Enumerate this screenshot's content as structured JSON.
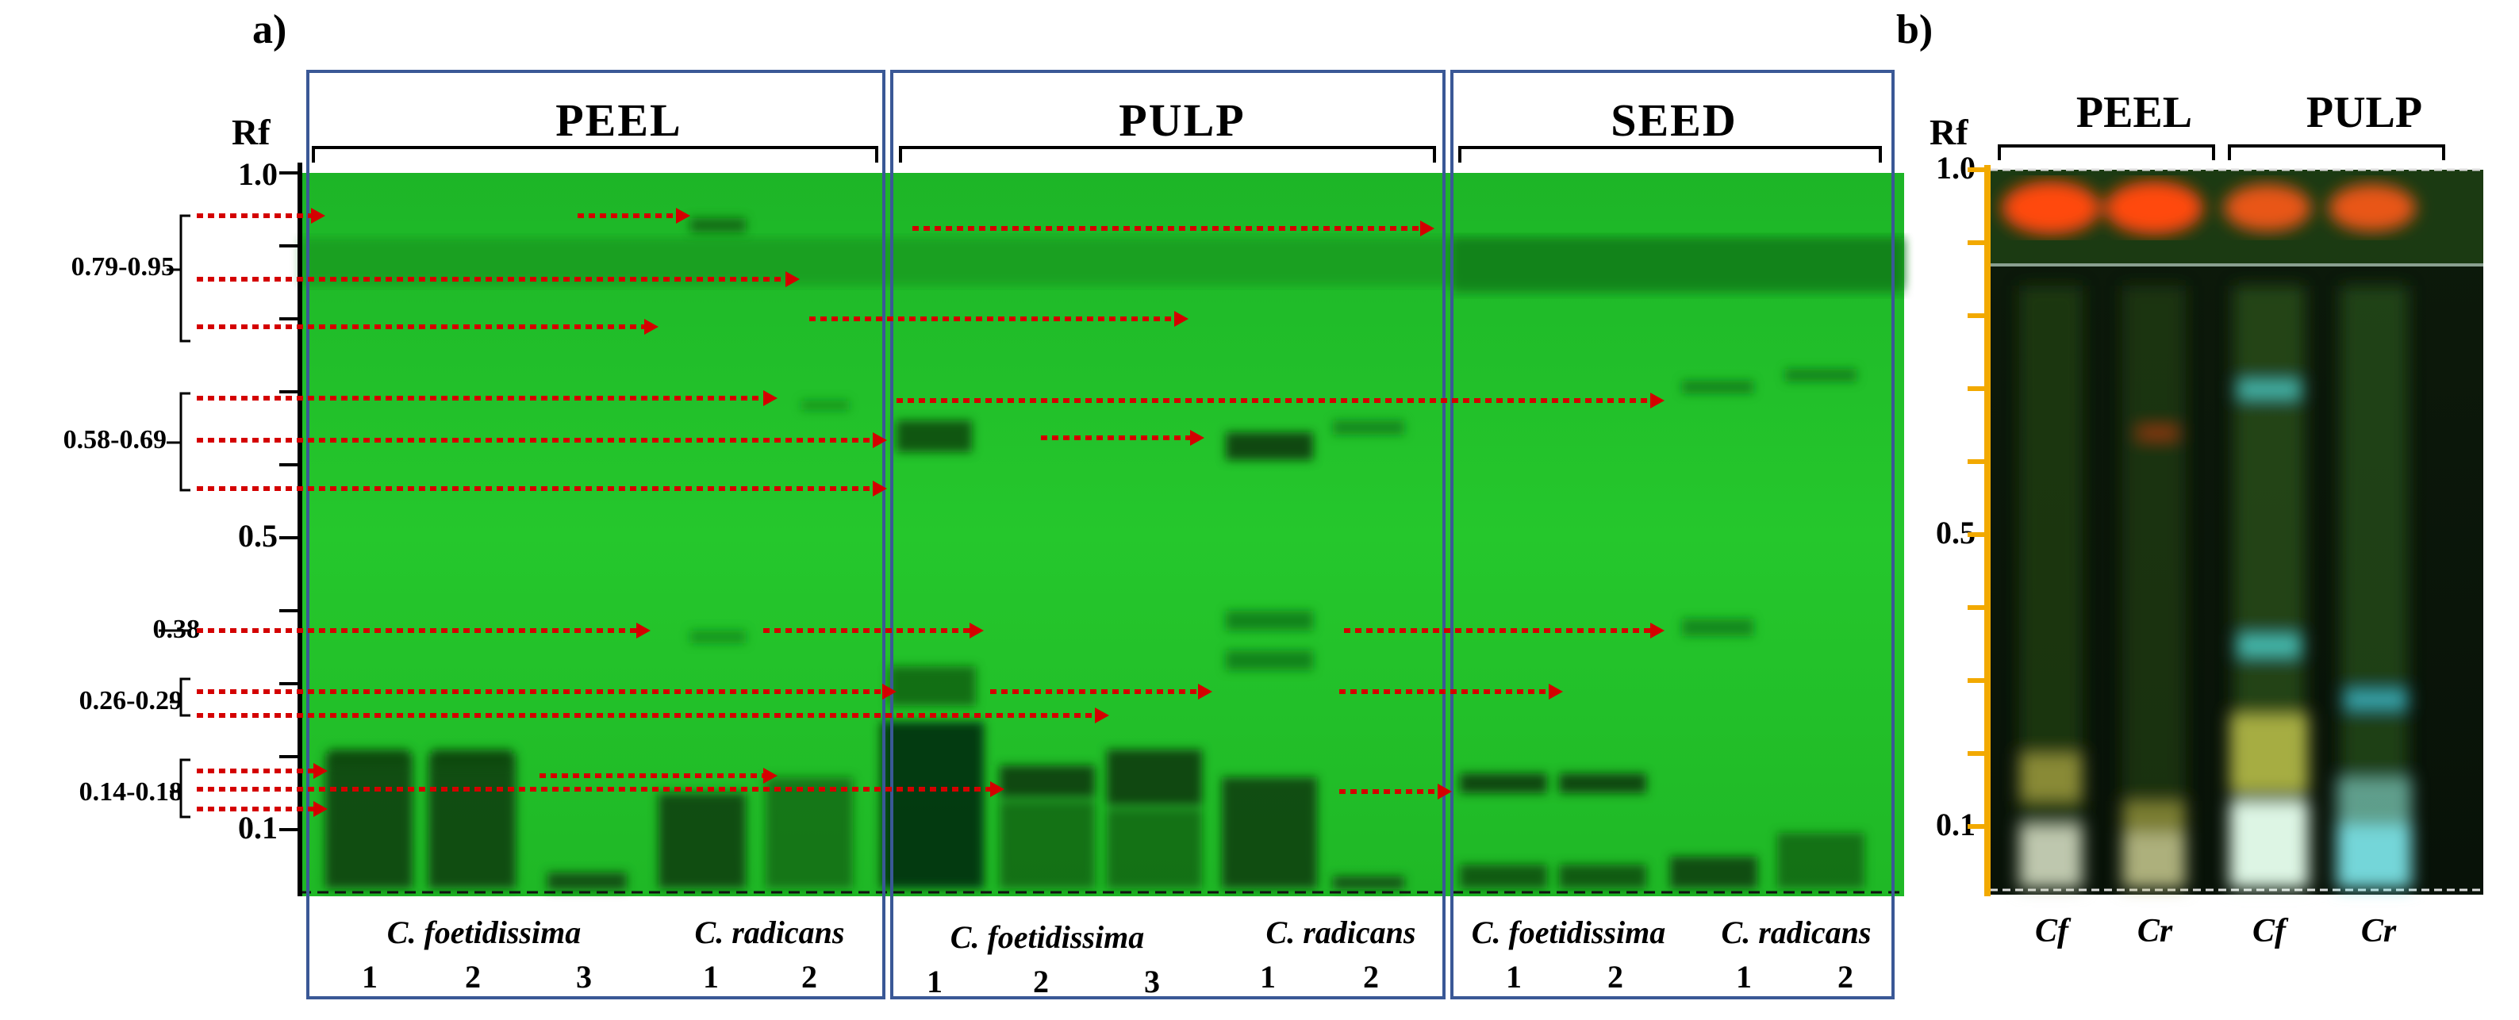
{
  "figure": {
    "panel_a_label": "a)",
    "panel_b_label": "b)",
    "rf_axis_title": "Rf",
    "rf_ticks": [
      "1.0",
      "0.5",
      "0.1"
    ],
    "rf_ranges": [
      "0.79-0.95",
      "0.58-0.69",
      "0.38",
      "0.26-0.29",
      "0.14-0.18"
    ],
    "sections": {
      "peel": {
        "title": "PEEL",
        "species": [
          {
            "name": "C. foetidissima",
            "lanes": [
              "1",
              "2",
              "3"
            ]
          },
          {
            "name": "C. radicans",
            "lanes": [
              "1",
              "2"
            ]
          }
        ]
      },
      "pulp": {
        "title": "PULP",
        "species": [
          {
            "name": "C. foetidissima",
            "lanes": [
              "1",
              "2",
              "3"
            ]
          },
          {
            "name": "C. radicans",
            "lanes": [
              "1",
              "2"
            ]
          }
        ]
      },
      "seed": {
        "title": "SEED",
        "species": [
          {
            "name": "C. foetidissima",
            "lanes": [
              "1",
              "2"
            ]
          },
          {
            "name": "C. radicans",
            "lanes": [
              "1",
              "2"
            ]
          }
        ]
      }
    },
    "panel_b": {
      "rf_axis_title": "Rf",
      "rf_ticks": [
        "1.0",
        "0.5",
        "0.1"
      ],
      "groups": [
        "PEEL",
        "PULP"
      ],
      "lanes": [
        "Cf",
        "Cr",
        "Cf",
        "Cr"
      ]
    },
    "colors": {
      "plate_green": "#22c42a",
      "arrow_red": "#d40000",
      "box_blue": "#3a5896",
      "axis_orange": "#f2a900",
      "plate_b_dark": "#0b1608"
    }
  }
}
